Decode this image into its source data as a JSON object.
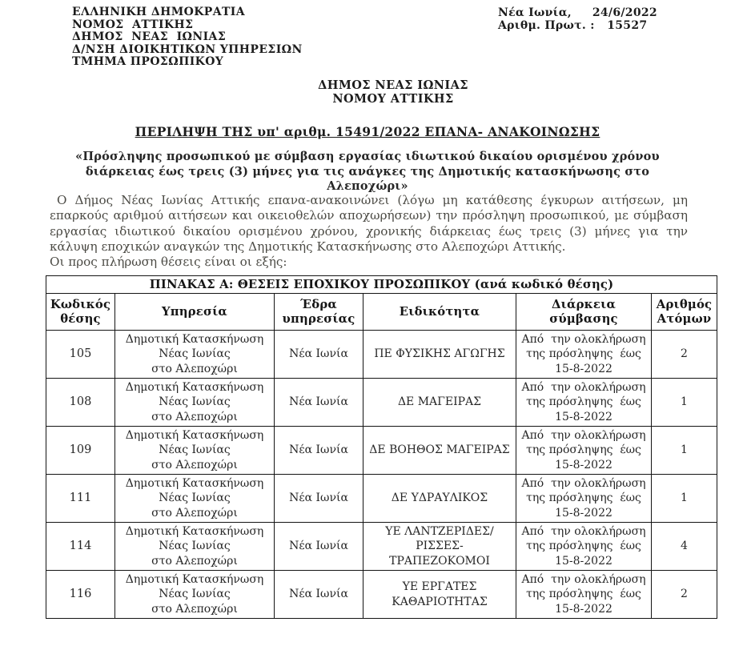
{
  "letterhead": {
    "lines": [
      "ΕΛΛΗΝΙΚΗ ΔΗΜΟΚΡΑΤΙΑ",
      "ΝΟΜΟΣ  ΑΤΤΙΚΗΣ",
      "ΔΗΜΟΣ  ΝΕΑΣ  ΙΩΝΙΑΣ",
      "Δ/ΝΣΗ ΔΙΟΙΚΗΤΙΚΩΝ ΥΠΗΡΕΣΙΩΝ",
      "ΤΜΗΜΑ ΠΡΟΣΩΠΙΚΟΥ"
    ]
  },
  "reference": {
    "place_date": "Νέα Ιωνία,     24/6/2022",
    "protocol": "Αριθμ. Πρωτ. :   15527"
  },
  "recipient": {
    "line1": "ΔΗΜΟΣ ΝΕΑΣ ΙΩΝΙΑΣ",
    "line2": "ΝΟΜΟΥ ΑΤΤΙΚΗΣ"
  },
  "title": "ΠΕΡΙΛΗΨΗ ΤΗΣ υπ' αριθμ. 15491/2022 ΕΠΑΝΑ- ΑΝΑΚΟΙΝΩΣΗΣ",
  "subtitle": "«Πρόσληψης προσωπικού με σύμβαση εργασίας ιδιωτικού δικαίου ορισμένου χρόνου\nδιάρκειας έως τρεις (3) μήνες για τις ανάγκες της Δημοτικής κατασκήνωσης στο Αλεποχώρι»",
  "body": {
    "paragraph": "Ο Δήμος Νέας Ιωνίας Αττικής επανα-ανακοινώνει (λόγω μη κατάθεσης έγκυρων αιτήσεων, μη επαρκούς αριθμού αιτήσεων και οικειοθελών αποχωρήσεων) την πρόσληψη προσωπικού,   με σύμβαση εργασίας ιδιωτικού δικαίου ορισμένου χρόνου, χρονικής διάρκειας έως τρεις (3) μήνες για την κάλυψη εποχικών αναγκών της Δημοτικής Κατασκήνωσης στο Αλεποχώρι Αττικής.",
    "positions_intro": "Οι προς πλήρωση θέσεις είναι οι εξής:"
  },
  "table": {
    "title": "ΠΙΝΑΚΑΣ Α: ΘΕΣΕΙΣ ΕΠΟΧΙΚΟΥ ΠΡΟΣΩΠΙΚΟΥ (ανά κωδικό θέσης)",
    "headers": [
      "Κωδικός\nθέσης",
      "Υπηρεσία",
      "Έδρα\nυπηρεσίας",
      "Ειδικότητα",
      "Διάρκεια\nσύμβασης",
      "Αριθμός\nΑτόμων"
    ],
    "rows": [
      {
        "code": "105",
        "service": "Δημοτική Κατασκήνωση\nΝέας Ιωνίας\nστο Αλεποχώρι",
        "seat": "Νέα Ιωνία",
        "specialty": "ΠΕ ΦΥΣΙΚΗΣ ΑΓΩΓΗΣ",
        "duration": "Από  την ολοκλήρωση\nτης πρόσληψης  έως\n15-8-2022",
        "count": "2"
      },
      {
        "code": "108",
        "service": "Δημοτική Κατασκήνωση\nΝέας Ιωνίας\nστο Αλεποχώρι",
        "seat": "Νέα Ιωνία",
        "specialty": "ΔΕ ΜΑΓΕΙΡΑΣ",
        "duration": "Από  την ολοκλήρωση\nτης πρόσληψης  έως\n15-8-2022",
        "count": "1"
      },
      {
        "code": "109",
        "service": "Δημοτική Κατασκήνωση\nΝέας Ιωνίας\nστο Αλεποχώρι",
        "seat": "Νέα Ιωνία",
        "specialty": "ΔΕ ΒΟΗΘΟΣ ΜΑΓΕΙΡΑΣ",
        "duration": "Από  την ολοκλήρωση\nτης πρόσληψης  έως\n15-8-2022",
        "count": "1"
      },
      {
        "code": "111",
        "service": "Δημοτική Κατασκήνωση\nΝέας Ιωνίας\nστο Αλεποχώρι",
        "seat": "Νέα Ιωνία",
        "specialty": "ΔΕ ΥΔΡΑΥΛΙΚΟΣ",
        "duration": "Από  την ολοκλήρωση\nτης πρόσληψης  έως\n15-8-2022",
        "count": "1"
      },
      {
        "code": "114",
        "service": "Δημοτική Κατασκήνωση\nΝέας Ιωνίας\nστο Αλεποχώρι",
        "seat": "Νέα Ιωνία",
        "specialty": "ΥΕ ΛΑΝΤΖΕΡΙΔΕΣ/\nΡΙΣΣΕΣ-\nΤΡΑΠΕΖΟΚΟΜΟΙ",
        "duration": "Από  την ολοκλήρωση\nτης πρόσληψης  έως\n15-8-2022",
        "count": "4"
      },
      {
        "code": "116",
        "service": "Δημοτική Κατασκήνωση\nΝέας Ιωνίας\nστο Αλεποχώρι",
        "seat": "Νέα Ιωνία",
        "specialty": "ΥΕ ΕΡΓΑΤΕΣ\nΚΑΘΑΡΙΟΤΗΤΑΣ",
        "duration": "Από  την ολοκλήρωση\nτης πρόσληψης  έως\n15-8-2022",
        "count": "2"
      }
    ]
  }
}
